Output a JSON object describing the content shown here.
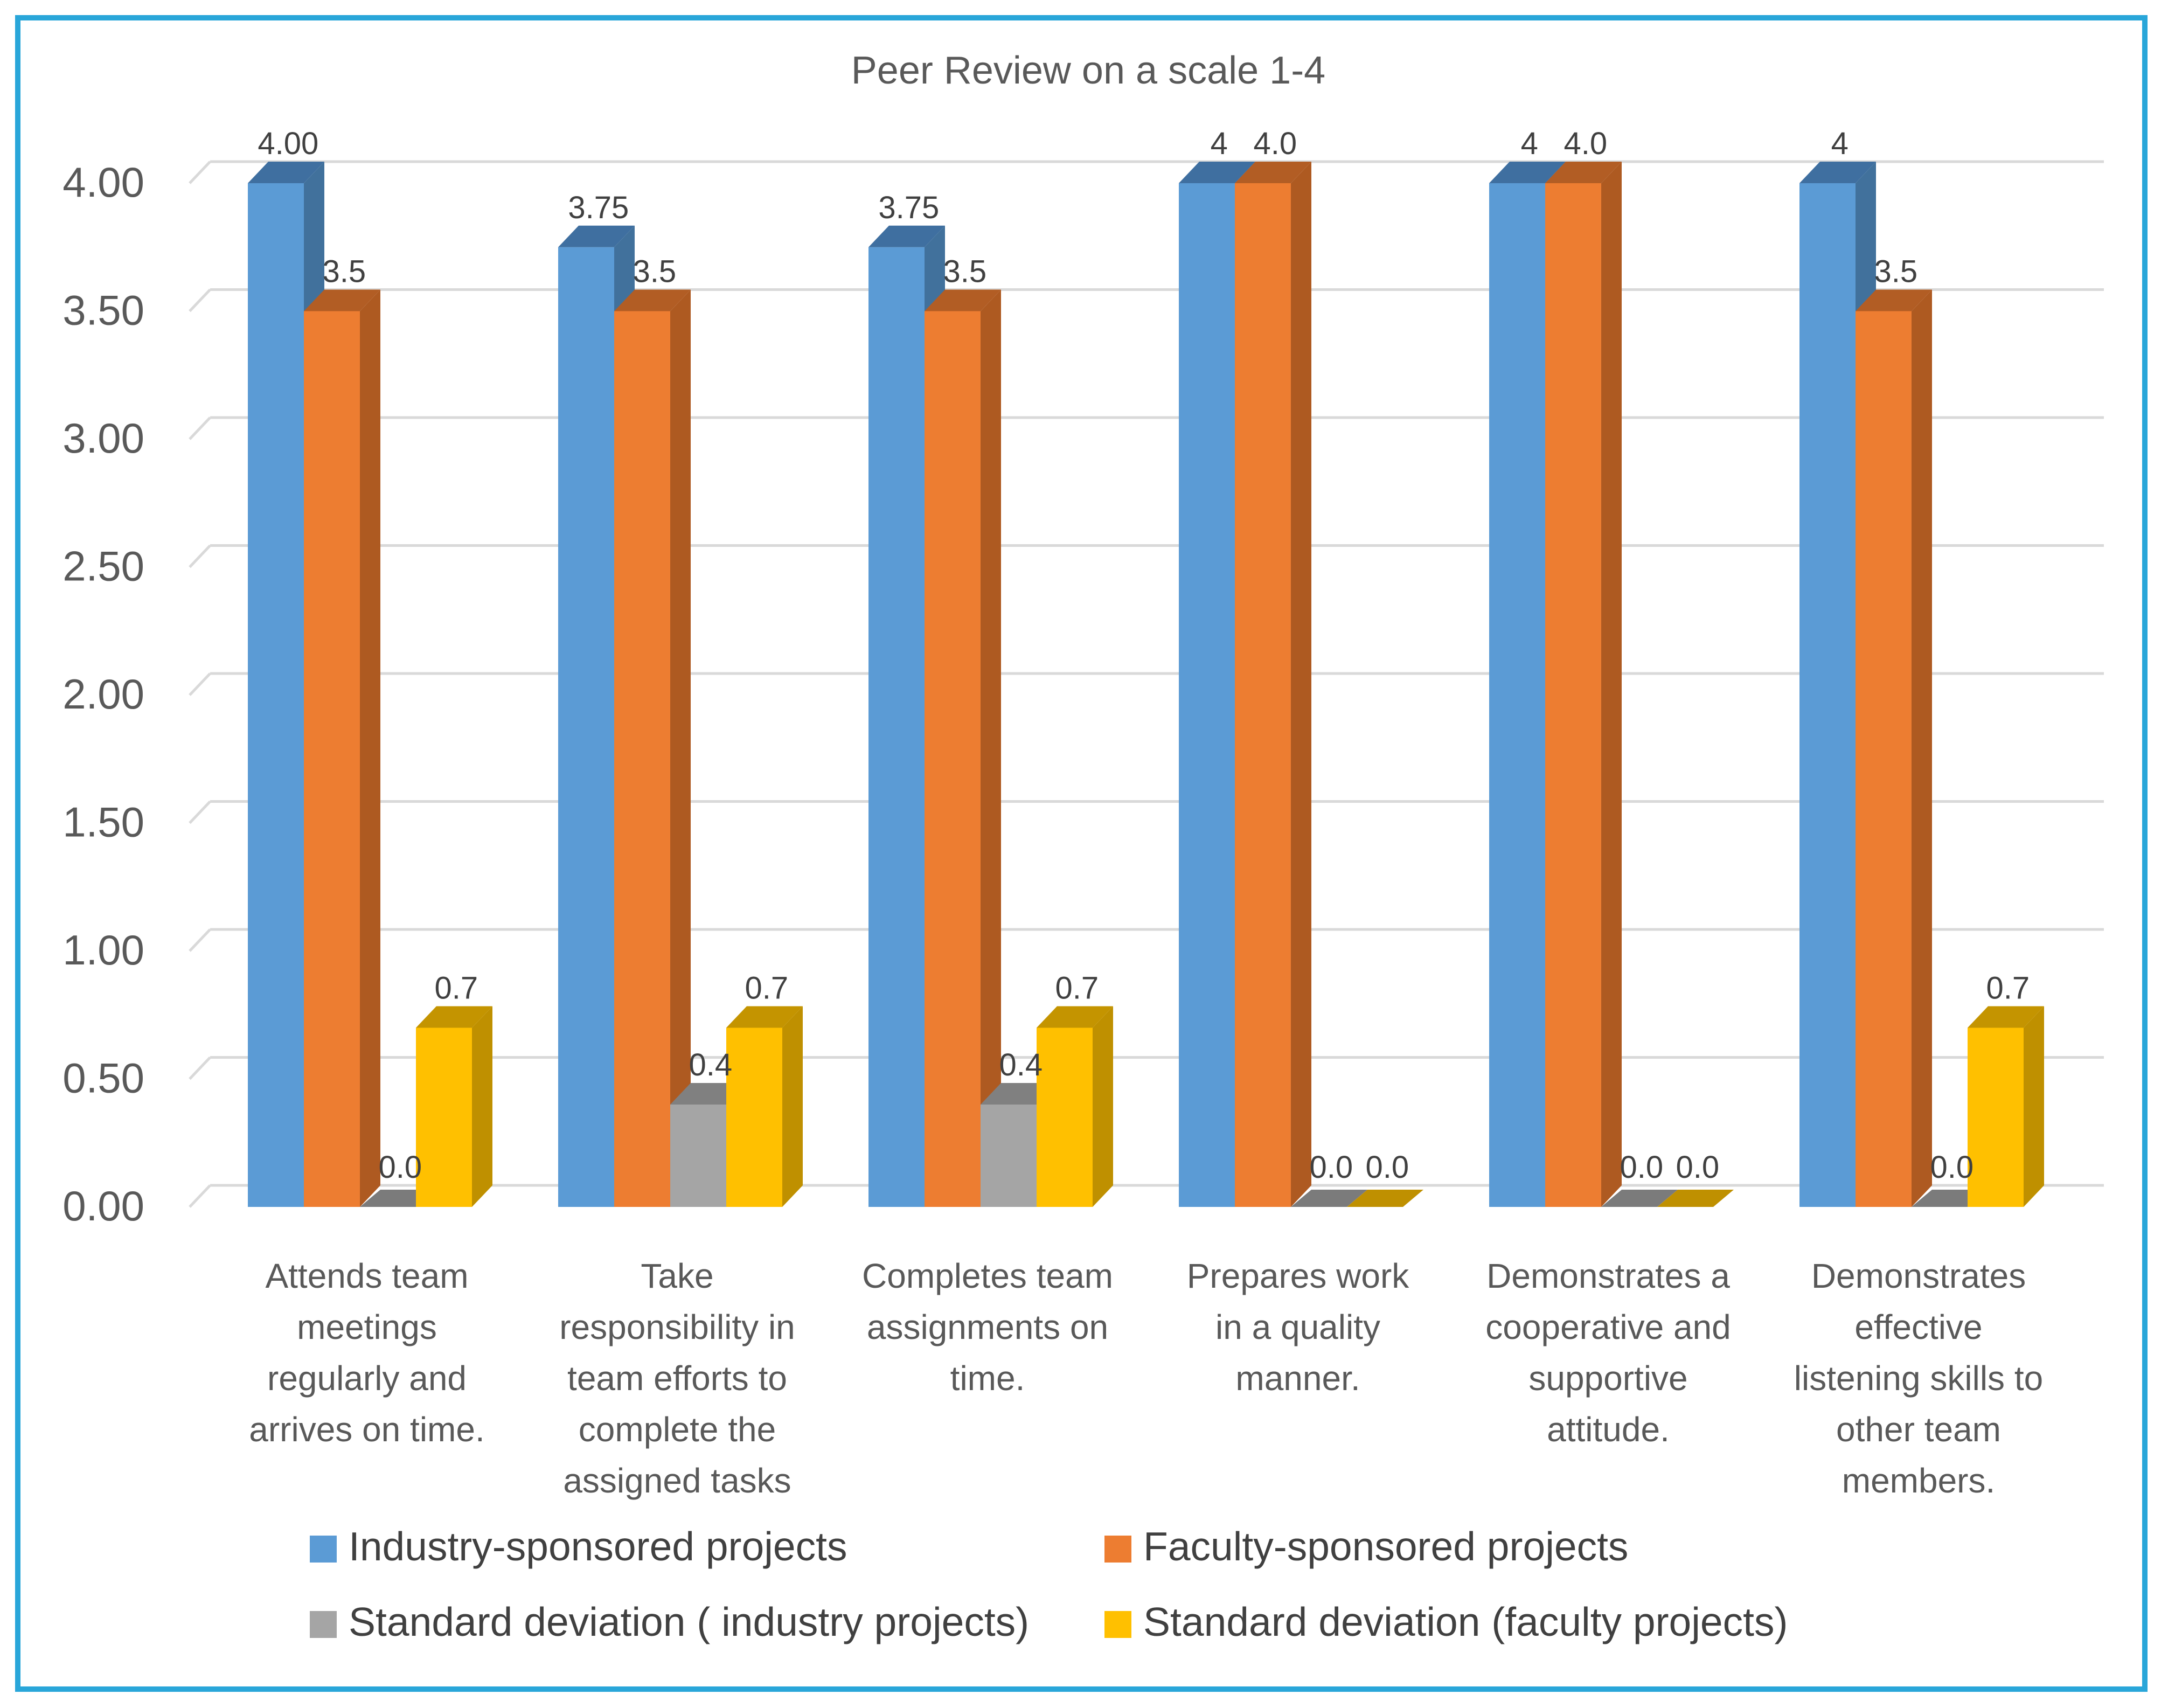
{
  "chart_data": {
    "type": "bar",
    "title": "Peer Review on a scale 1-4",
    "xlabel": "",
    "ylabel": "",
    "ylim": [
      0,
      4
    ],
    "y_ticks": [
      "0.00",
      "0.50",
      "1.00",
      "1.50",
      "2.00",
      "2.50",
      "3.00",
      "3.50",
      "4.00"
    ],
    "categories": [
      [
        "Attends team",
        "meetings",
        "regularly and",
        "arrives on time."
      ],
      [
        "Take",
        "responsibility  in",
        "team efforts to",
        "complete the",
        "assigned tasks"
      ],
      [
        "Completes team",
        "assignments on",
        "time."
      ],
      [
        "Prepares work",
        "in a quality",
        "manner."
      ],
      [
        "Demonstrates a",
        "cooperative and",
        "supportive",
        "attitude."
      ],
      [
        "Demonstrates",
        "effective",
        "listening skills to",
        "other team",
        "members."
      ]
    ],
    "series": [
      {
        "name": "Industry-sponsored projects",
        "color": "#5b9bd5",
        "side": "#41719c",
        "top": "#3f6fa0",
        "values": [
          4.0,
          3.75,
          3.75,
          4.0,
          4.0,
          4.0
        ],
        "labels": [
          "4.00",
          "3.75",
          "3.75",
          "4",
          "4",
          "4"
        ]
      },
      {
        "name": "Faculty-sponsored projects",
        "color": "#ed7d31",
        "side": "#ae5a21",
        "top": "#b25d24",
        "values": [
          3.5,
          3.5,
          3.5,
          4.0,
          4.0,
          3.5
        ],
        "labels": [
          "3.5",
          "3.5",
          "3.5",
          "4.0",
          "4.0",
          "3.5"
        ]
      },
      {
        "name": "Standard deviation ( industry projects)",
        "color": "#a5a5a5",
        "side": "#7b7b7b",
        "top": "#808080",
        "values": [
          0.0,
          0.4,
          0.4,
          0.0,
          0.0,
          0.0
        ],
        "labels": [
          "0.0",
          "0.4",
          "0.4",
          "0.0",
          "0.0",
          "0.0"
        ]
      },
      {
        "name": "Standard deviation (faculty projects)",
        "color": "#ffc000",
        "side": "#bf9000",
        "top": "#c49400",
        "values": [
          0.7,
          0.7,
          0.7,
          0.0,
          0.0,
          0.7
        ],
        "labels": [
          "0.7",
          "0.7",
          "0.7",
          "0.0",
          "0.0",
          "0.7"
        ]
      }
    ],
    "legend_position": "bottom",
    "grid": true
  }
}
